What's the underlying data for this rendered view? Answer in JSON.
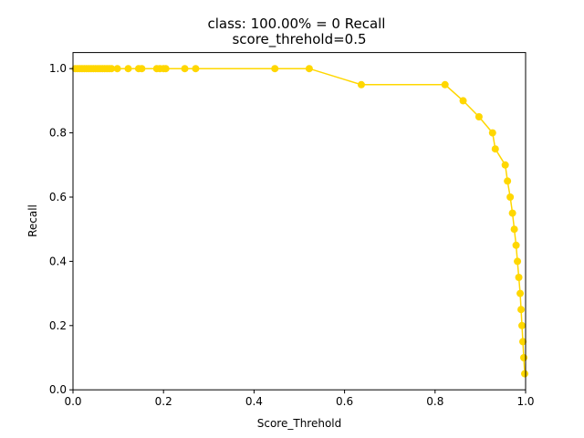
{
  "chart_data": {
    "type": "line",
    "title_line1": "class: 100.00% = 0 Recall",
    "title_line2": "score_threhold=0.5",
    "xlabel": "Score_Threhold",
    "ylabel": "Recall",
    "xlim": [
      0,
      1
    ],
    "ylim": [
      0,
      1.05
    ],
    "xticks": [
      "0.0",
      "0.2",
      "0.4",
      "0.6",
      "0.8",
      "1.0"
    ],
    "yticks": [
      "0.0",
      "0.2",
      "0.4",
      "0.6",
      "0.8",
      "1.0"
    ],
    "grid": false,
    "series": [
      {
        "color": "#FFD700",
        "x": [
          0.005,
          0.01,
          0.015,
          0.02,
          0.025,
          0.03,
          0.035,
          0.04,
          0.045,
          0.05,
          0.055,
          0.06,
          0.065,
          0.07,
          0.075,
          0.08,
          0.085,
          0.098,
          0.122,
          0.145,
          0.152,
          0.185,
          0.192,
          0.2,
          0.205,
          0.247,
          0.271,
          0.446,
          0.522,
          0.637,
          0.822,
          0.862,
          0.897,
          0.927,
          0.933,
          0.955,
          0.96,
          0.966,
          0.971,
          0.975,
          0.979,
          0.982,
          0.985,
          0.988,
          0.99,
          0.992,
          0.994,
          0.996,
          0.998
        ],
        "y": [
          1.0,
          1.0,
          1.0,
          1.0,
          1.0,
          1.0,
          1.0,
          1.0,
          1.0,
          1.0,
          1.0,
          1.0,
          1.0,
          1.0,
          1.0,
          1.0,
          1.0,
          1.0,
          1.0,
          1.0,
          1.0,
          1.0,
          1.0,
          1.0,
          1.0,
          1.0,
          1.0,
          1.0,
          1.0,
          0.95,
          0.95,
          0.9,
          0.85,
          0.8,
          0.75,
          0.7,
          0.65,
          0.6,
          0.55,
          0.5,
          0.45,
          0.4,
          0.35,
          0.3,
          0.25,
          0.2,
          0.15,
          0.1,
          0.05
        ]
      }
    ]
  }
}
